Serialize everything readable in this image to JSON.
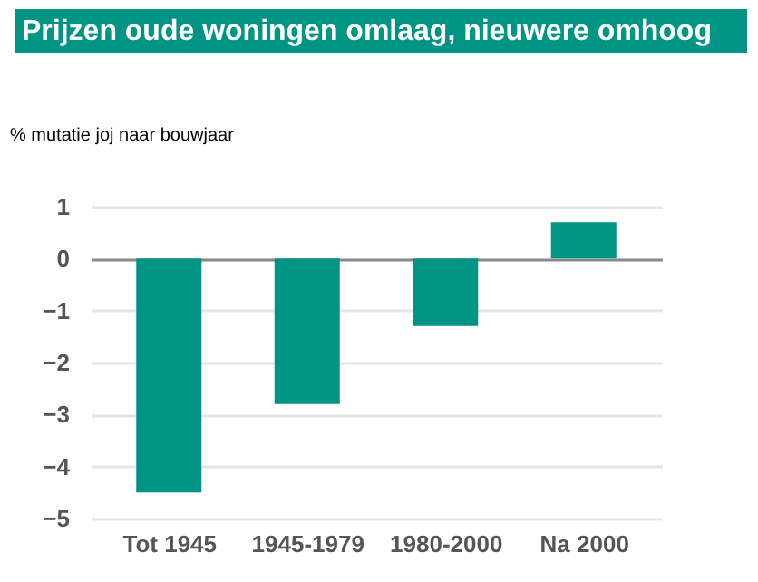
{
  "chart_data": {
    "type": "bar",
    "title": "Prijzen oude woningen omlaag, nieuwere omhoog",
    "ylabel": "% mutatie joj naar bouwjaar",
    "categories": [
      "Tot 1945",
      "1945-1979",
      "1980-2000",
      "Na 2000"
    ],
    "series": [
      {
        "color": "#009484",
        "values": [
          -4.5,
          -2.8,
          -1.3,
          0.7
        ]
      }
    ],
    "ylim": [
      -5,
      1
    ],
    "yticks": [
      -5,
      -4,
      -3,
      -2,
      -1,
      0,
      1
    ],
    "grid": "y"
  }
}
